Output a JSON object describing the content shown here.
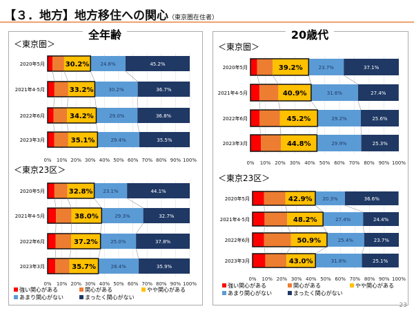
{
  "header": {
    "title": "【３．地方】地方移住への関心",
    "subtitle": "（東京圏在住者）"
  },
  "page_number": "23",
  "colors": {
    "strong": "#ff0000",
    "interest": "#ed7d31",
    "somewhat": "#ffc000",
    "little": "#5b9bd5",
    "none": "#1f3864"
  },
  "legend": [
    "強い関心がある",
    "関心がある",
    "やや関心がある",
    "あまり関心がない",
    "まったく関心がない"
  ],
  "panels": [
    {
      "title": "全年齢"
    },
    {
      "title": "20歳代"
    }
  ],
  "chart_data": [
    {
      "type": "bar",
      "stacked": "horizontal-100%",
      "panel": "全年齢",
      "title": "＜東京圏＞",
      "categories": [
        "2020年5月",
        "2021年4-5月",
        "2022年6月",
        "2023年3月"
      ],
      "xlim": [
        0,
        100
      ],
      "xticks": [
        "0%",
        "10%",
        "20%",
        "30%",
        "40%",
        "50%",
        "60%",
        "70%",
        "80%",
        "90%",
        "100%"
      ],
      "series": [
        {
          "name": "強い関心がある",
          "values": [
            3.5,
            4.8,
            4.2,
            4.7
          ]
        },
        {
          "name": "関心がある",
          "values": [
            8.1,
            9.7,
            9.5,
            9.8
          ]
        },
        {
          "name": "やや関心がある",
          "values": [
            18.6,
            18.7,
            20.5,
            20.6
          ]
        },
        {
          "name": "あまり関心がない",
          "values": [
            24.6,
            30.2,
            29.0,
            29.4
          ]
        },
        {
          "name": "まったく関心がない",
          "values": [
            45.2,
            36.7,
            36.8,
            35.5
          ]
        }
      ],
      "total_labels": [
        "30.2%",
        "33.2%",
        "34.2%",
        "35.1%"
      ],
      "little_labels": [
        "24.6%",
        "30.2%",
        "29.0%",
        "29.4%"
      ],
      "none_labels": [
        "45.2%",
        "36.7%",
        "36.8%",
        "35.5%"
      ]
    },
    {
      "type": "bar",
      "stacked": "horizontal-100%",
      "panel": "全年齢",
      "title": "＜東京23区＞",
      "categories": [
        "2020年5月",
        "2021年4-5月",
        "2022年6月",
        "2023年3月"
      ],
      "xlim": [
        0,
        100
      ],
      "xticks": [
        "0%",
        "10%",
        "20%",
        "30%",
        "40%",
        "50%",
        "60%",
        "70%",
        "80%",
        "90%",
        "100%"
      ],
      "series": [
        {
          "name": "強い関心がある",
          "values": [
            4.8,
            5.9,
            5.6,
            5.4
          ]
        },
        {
          "name": "関心がある",
          "values": [
            9.1,
            10.9,
            10.9,
            10.0
          ]
        },
        {
          "name": "やや関心がある",
          "values": [
            18.9,
            21.2,
            20.7,
            20.3
          ]
        },
        {
          "name": "あまり関心がない",
          "values": [
            23.1,
            29.3,
            25.0,
            28.4
          ]
        },
        {
          "name": "まったく関心がない",
          "values": [
            44.1,
            32.7,
            37.8,
            35.9
          ]
        }
      ],
      "total_labels": [
        "32.8%",
        "38.0%",
        "37.2%",
        "35.7%"
      ],
      "little_labels": [
        "23.1%",
        "29.3%",
        "25.0%",
        "28.4%"
      ],
      "none_labels": [
        "44.1%",
        "32.7%",
        "37.8%",
        "35.9%"
      ]
    },
    {
      "type": "bar",
      "stacked": "horizontal-100%",
      "panel": "20歳代",
      "title": "＜東京圏＞",
      "categories": [
        "2020年5月",
        "2021年4-5月",
        "2022年6月",
        "2023年3月"
      ],
      "xlim": [
        0,
        100
      ],
      "xticks": [
        "0%",
        "10%",
        "20%",
        "30%",
        "40%",
        "50%",
        "60%",
        "70%",
        "80%",
        "90%",
        "100%"
      ],
      "series": [
        {
          "name": "強い関心がある",
          "values": [
            4.5,
            6.1,
            6.2,
            7.0
          ]
        },
        {
          "name": "関心がある",
          "values": [
            10.5,
            12.7,
            13.7,
            13.6
          ]
        },
        {
          "name": "やや関心がある",
          "values": [
            24.2,
            22.1,
            25.3,
            24.2
          ]
        },
        {
          "name": "あまり関心がない",
          "values": [
            23.7,
            31.6,
            29.2,
            29.9
          ]
        },
        {
          "name": "まったく関心がない",
          "values": [
            37.1,
            27.4,
            25.6,
            25.3
          ]
        }
      ],
      "total_labels": [
        "39.2%",
        "40.9%",
        "45.2%",
        "44.8%"
      ],
      "little_labels": [
        "23.7%",
        "31.6%",
        "29.2%",
        "29.9%"
      ],
      "none_labels": [
        "37.1%",
        "27.4%",
        "25.6%",
        "25.3%"
      ]
    },
    {
      "type": "bar",
      "stacked": "horizontal-100%",
      "panel": "20歳代",
      "title": "＜東京23区＞",
      "categories": [
        "2020年5月",
        "2021年4-5月",
        "2022年6月",
        "2023年3月"
      ],
      "xlim": [
        0,
        100
      ],
      "xticks": [
        "0%",
        "10%",
        "20%",
        "30%",
        "40%",
        "50%",
        "60%",
        "70%",
        "80%",
        "90%",
        "100%"
      ],
      "series": [
        {
          "name": "強い関心がある",
          "values": [
            7.9,
            8.2,
            7.9,
            8.7
          ]
        },
        {
          "name": "関心がある",
          "values": [
            14.5,
            15.5,
            18.4,
            14.5
          ]
        },
        {
          "name": "やや関心がある",
          "values": [
            20.5,
            24.5,
            24.6,
            19.8
          ]
        },
        {
          "name": "あまり関心がない",
          "values": [
            20.3,
            27.4,
            25.4,
            31.8
          ]
        },
        {
          "name": "まったく関心がない",
          "values": [
            36.6,
            24.4,
            23.7,
            25.1
          ]
        }
      ],
      "total_labels": [
        "42.9%",
        "48.2%",
        "50.9%",
        "43.0%"
      ],
      "little_labels": [
        "20.3%",
        "27.4%",
        "25.4%",
        "31.8%"
      ],
      "none_labels": [
        "36.6%",
        "24.4%",
        "23.7%",
        "25.1%"
      ]
    }
  ]
}
